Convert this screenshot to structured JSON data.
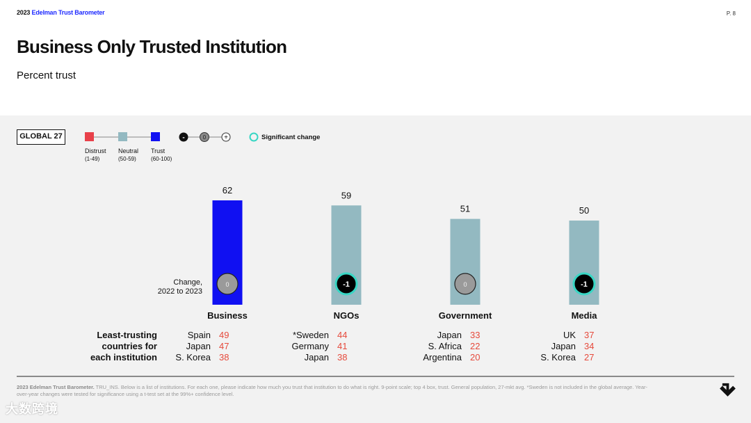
{
  "header": {
    "brand_year": "2023",
    "brand_name": "Edelman Trust Barometer",
    "page_number": "P. 8",
    "title": "Business Only Trusted Institution",
    "subtitle": "Percent trust"
  },
  "legend": {
    "global_label": "GLOBAL 27",
    "distrust_label": "Distrust",
    "distrust_range": "(1-49)",
    "neutral_label": "Neutral",
    "neutral_range": "(50-59)",
    "trust_label": "Trust",
    "trust_range": "(60-100)",
    "minus_symbol": "-",
    "zero_symbol": "0",
    "plus_symbol": "+",
    "significant_change_label": "Significant change",
    "colors": {
      "distrust": "#e8414a",
      "neutral": "#93b9c1",
      "trust": "#1010f2",
      "significant": "#38d6c4"
    }
  },
  "chart_data": {
    "type": "bar",
    "title": "Business Only Trusted Institution",
    "ylabel": "Percent trust",
    "ylim": [
      0,
      62
    ],
    "categories": [
      "Business",
      "NGOs",
      "Government",
      "Media"
    ],
    "values": [
      62,
      59,
      51,
      50
    ],
    "value_labels": [
      "62",
      "59",
      "51",
      "50"
    ],
    "categories_levels": [
      "trust",
      "neutral",
      "neutral",
      "neutral"
    ],
    "change_label": "Change, 2022 to 2023",
    "change_values": [
      "0",
      "-1",
      "0",
      "-1"
    ],
    "change_significant": [
      false,
      true,
      false,
      true
    ]
  },
  "least_trusting": {
    "header": "Least-trusting countries for each institution",
    "header_lines": [
      "Least-trusting",
      "countries for",
      "each institution"
    ],
    "groups": [
      {
        "institution": "Business",
        "rows": [
          {
            "country": "Spain",
            "value": "49"
          },
          {
            "country": "Japan",
            "value": "47"
          },
          {
            "country": "S. Korea",
            "value": "38"
          }
        ]
      },
      {
        "institution": "NGOs",
        "rows": [
          {
            "country": "*Sweden",
            "value": "44"
          },
          {
            "country": "Germany",
            "value": "41"
          },
          {
            "country": "Japan",
            "value": "38"
          }
        ]
      },
      {
        "institution": "Government",
        "rows": [
          {
            "country": "Japan",
            "value": "33"
          },
          {
            "country": "S. Africa",
            "value": "22"
          },
          {
            "country": "Argentina",
            "value": "20"
          }
        ]
      },
      {
        "institution": "Media",
        "rows": [
          {
            "country": "UK",
            "value": "37"
          },
          {
            "country": "Japan",
            "value": "34"
          },
          {
            "country": "S. Korea",
            "value": "27"
          }
        ]
      }
    ]
  },
  "footer": {
    "source_bold": "2023 Edelman Trust Barometer.",
    "source_text": " TRU_INS. Below is a list of institutions. For each one, please indicate how much you trust that institution to do what is right. 9-point scale; top 4 box, trust. General population, 27-mkt avg. *Sweden is not included in the global average. Year-over-year changes were tested for significance using a t-test set at the 99%+ confidence level.",
    "watermark": "大数跨境"
  }
}
